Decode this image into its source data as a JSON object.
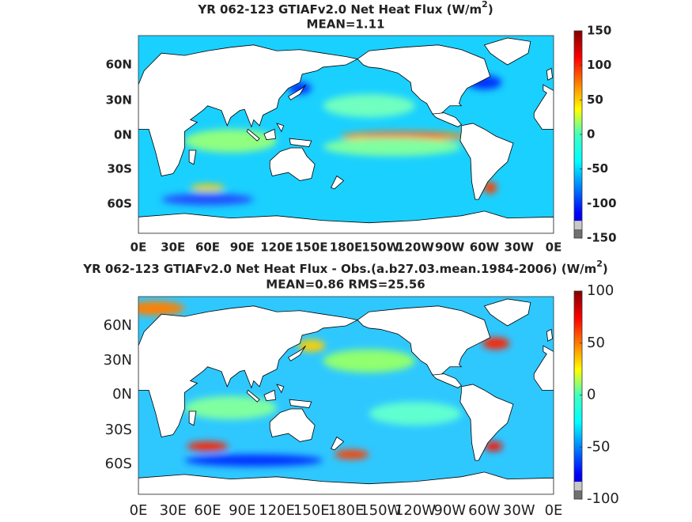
{
  "panels": [
    {
      "title": {
        "text": "YR 062-123 GTIAFv2.0  Net Heat Flux (W/m",
        "sup": "2",
        "close": ")"
      },
      "subtitle": "MEAN=1.11",
      "xticks": [
        "0E",
        "30E",
        "60E",
        "90E",
        "120E",
        "150E",
        "180E",
        "150W",
        "120W",
        "90W",
        "60W",
        "30W",
        "0E"
      ],
      "yticks": [
        "60N",
        "30N",
        "0N",
        "30S",
        "60S"
      ],
      "colorbar": {
        "lim": [
          -150,
          150
        ],
        "ticks": [
          150,
          100,
          50,
          0,
          -50,
          -100,
          -150
        ]
      }
    },
    {
      "title": {
        "text": "YR 062-123 GTIAFv2.0  Net Heat Flux - Obs.(a.b27.03.mean.1984-2006) (W/m",
        "sup": "2",
        "close": ")"
      },
      "subtitle": "MEAN=0.86 RMS=25.56",
      "xticks": [
        "0E",
        "30E",
        "60E",
        "90E",
        "120E",
        "150E",
        "180E",
        "150W",
        "120W",
        "90W",
        "60W",
        "30W",
        "0E"
      ],
      "yticks": [
        "60N",
        "30N",
        "0N",
        "30S",
        "60S"
      ],
      "colorbar": {
        "lim": [
          -100,
          100
        ],
        "ticks": [
          100,
          50,
          0,
          -50,
          -100
        ]
      }
    }
  ]
}
